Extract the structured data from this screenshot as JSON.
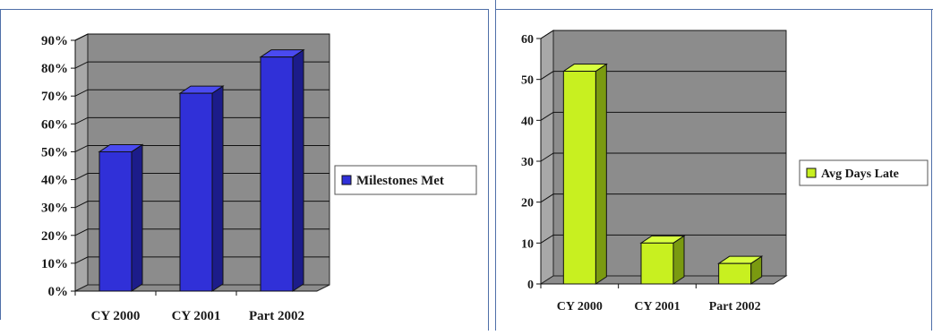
{
  "colors": {
    "panel_border": "#4f6fa8",
    "plot_back": "#8c8c8c",
    "plot_floor": "#8c8c8c",
    "plot_side": "#a8a8a8",
    "left_bar_front": "#3030d8",
    "left_bar_top": "#4a4af0",
    "left_bar_side": "#1c1c8a",
    "right_bar_front": "#c8f020",
    "right_bar_top": "#d8ff40",
    "right_bar_side": "#7a9a10"
  },
  "chart_data": [
    {
      "type": "bar",
      "categories": [
        "CY 2000",
        "CY 2001",
        "Part 2002"
      ],
      "series": [
        {
          "name": "Milestones Met",
          "values": [
            0.5,
            0.71,
            0.84
          ]
        }
      ],
      "ylim": [
        0,
        0.9
      ],
      "yticks": [
        "0%",
        "10%",
        "20%",
        "30%",
        "40%",
        "50%",
        "60%",
        "70%",
        "80%",
        "90%"
      ],
      "grid": true,
      "legend": "right"
    },
    {
      "type": "bar",
      "categories": [
        "CY 2000",
        "CY 2001",
        "Part 2002"
      ],
      "series": [
        {
          "name": "Avg Days Late",
          "values": [
            52,
            10,
            5
          ]
        }
      ],
      "ylim": [
        0,
        60
      ],
      "yticks": [
        "0",
        "10",
        "20",
        "30",
        "40",
        "50",
        "60"
      ],
      "grid": true,
      "legend": "right"
    }
  ]
}
